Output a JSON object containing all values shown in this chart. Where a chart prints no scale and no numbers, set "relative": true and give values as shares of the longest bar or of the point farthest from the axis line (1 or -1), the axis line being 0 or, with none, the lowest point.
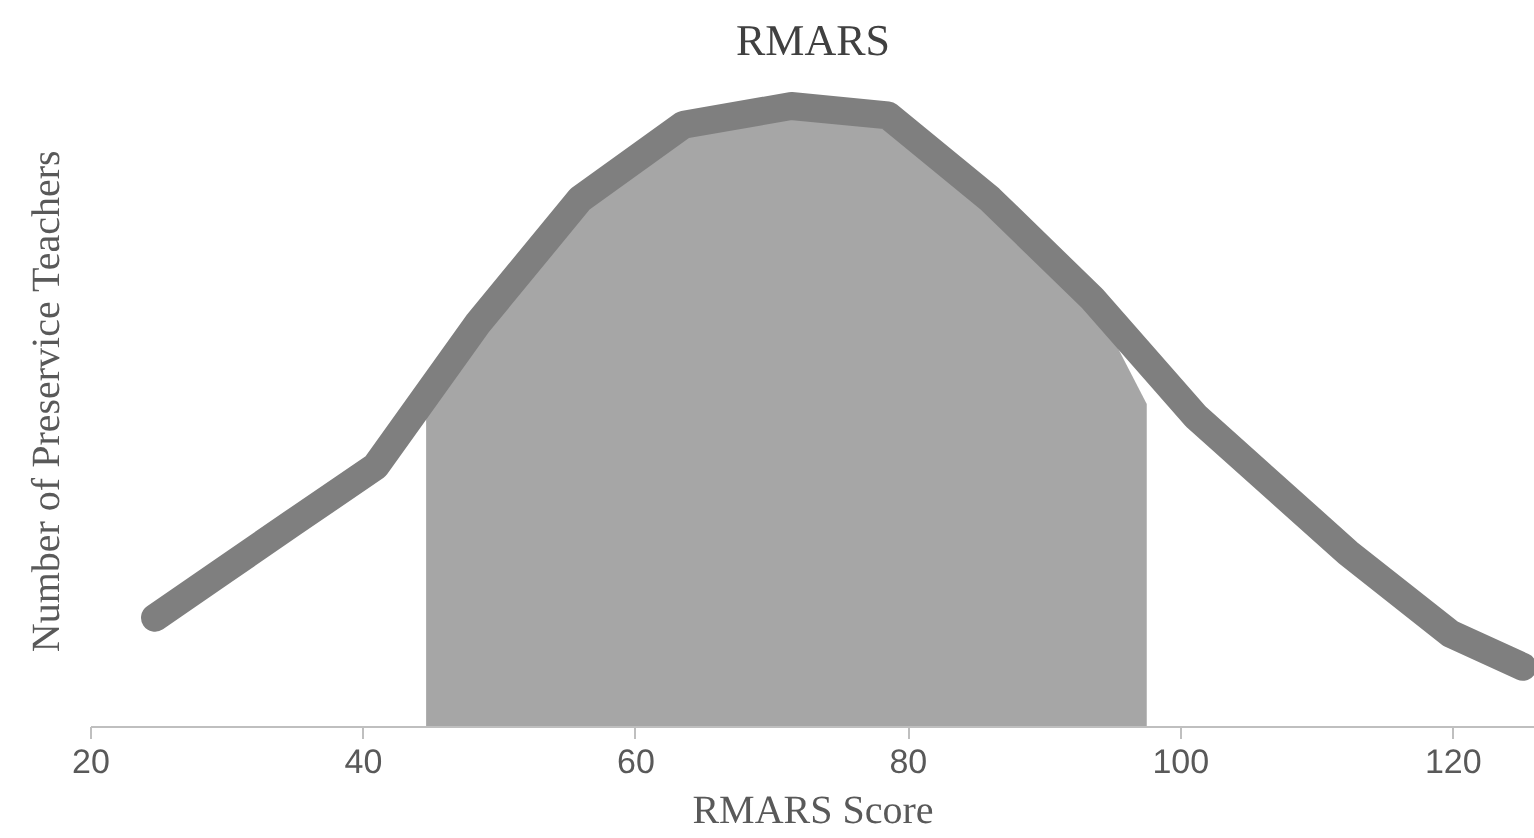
{
  "chart_data": {
    "type": "line",
    "title": "RMARS",
    "xlabel": "RMARS Score",
    "ylabel": "Number of Preservice Teachers",
    "relative": true,
    "xlim": [
      20,
      126
    ],
    "xticks": [
      20,
      40,
      60,
      80,
      100,
      120
    ],
    "grid": false,
    "line_style": "solid",
    "series": [
      {
        "type": "area",
        "color": "#a6a6a6",
        "x": [
          44.6,
          48.4,
          55.9,
          63.5,
          71.4,
          78.5,
          86.0,
          93.5,
          97.5
        ],
        "values": [
          0.51,
          0.65,
          0.85,
          0.97,
          1.0,
          0.985,
          0.85,
          0.69,
          0.52
        ]
      },
      {
        "color": "#7f7f7f",
        "x": [
          24.7,
          29.6,
          34.9,
          40.9,
          48.4,
          55.9,
          63.5,
          71.4,
          78.5,
          86.0,
          93.5,
          101.1,
          112.3,
          119.8,
          125.1
        ],
        "values": [
          0.176,
          0.25,
          0.33,
          0.42,
          0.65,
          0.85,
          0.97,
          1.0,
          0.985,
          0.85,
          0.69,
          0.5,
          0.28,
          0.15,
          0.097
        ]
      }
    ]
  }
}
